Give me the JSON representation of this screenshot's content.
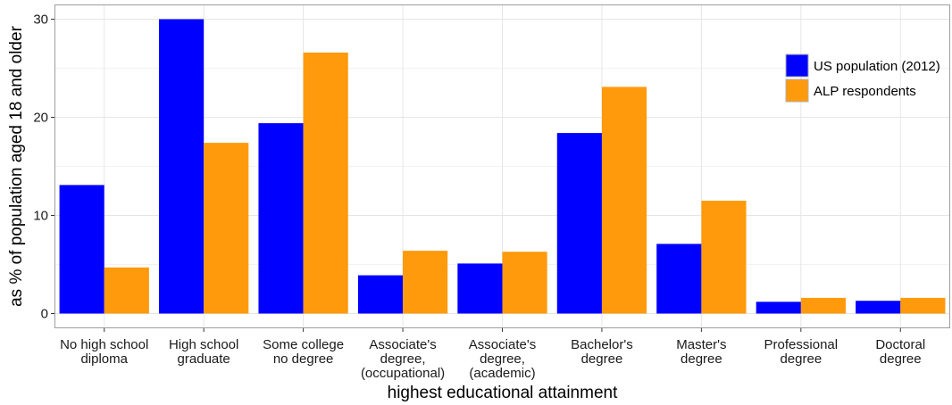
{
  "chart_data": {
    "type": "bar",
    "xlabel": "highest educational attainment",
    "ylabel": "as % of population aged 18 and older",
    "ylim": [
      -1.5,
      31.5
    ],
    "yticks": [
      0,
      10,
      20,
      30
    ],
    "grid": true,
    "legend_position": "top-right",
    "categories": [
      [
        "No high school",
        "diploma"
      ],
      [
        "High school",
        "graduate"
      ],
      [
        "Some college",
        "no degree"
      ],
      [
        "Associate's",
        "degree,",
        "(occupational)"
      ],
      [
        "Associate's",
        "degree,",
        "(academic)"
      ],
      [
        "Bachelor's",
        "degree"
      ],
      [
        "Master's",
        "degree"
      ],
      [
        "Professional",
        "degree"
      ],
      [
        "Doctoral",
        "degree"
      ]
    ],
    "series": [
      {
        "name": "US population (2012)",
        "color": "#0000ff",
        "values": [
          13.1,
          30.0,
          19.4,
          3.9,
          5.1,
          18.4,
          7.1,
          1.2,
          1.3
        ]
      },
      {
        "name": "ALP respondents",
        "color": "#ff9a0d",
        "values": [
          4.7,
          17.4,
          26.6,
          6.4,
          6.3,
          23.1,
          11.5,
          1.6,
          1.6
        ]
      }
    ]
  }
}
